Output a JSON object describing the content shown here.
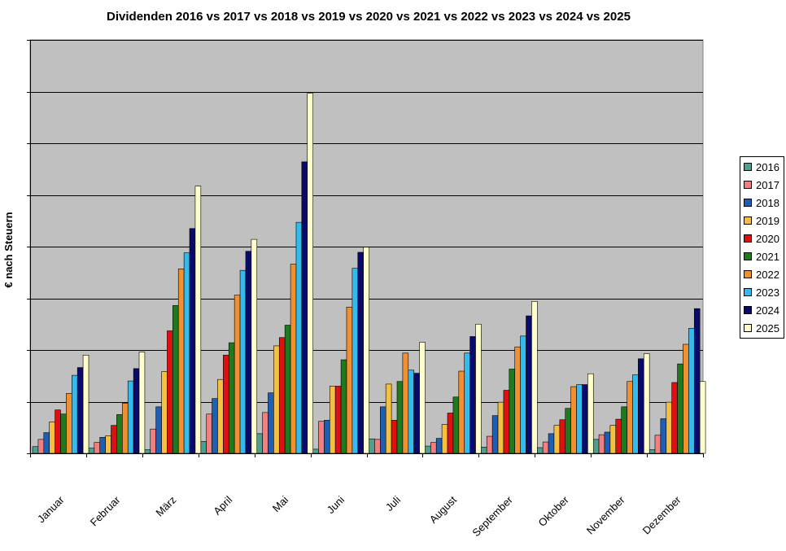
{
  "chart_data": {
    "type": "bar",
    "title": "Dividenden 2016 vs 2017 vs 2018 vs 2019 vs 2020 vs 2021 vs 2022 vs 2023 vs 2024 vs 2025",
    "xlabel": "",
    "ylabel": "€ nach Steuern",
    "ylim": [
      0,
      800
    ],
    "y_tick_step": 100,
    "y_tick_labels_visible": false,
    "grid": true,
    "legend": "right",
    "plot_background": "#c0c0c0",
    "categories": [
      "Januar",
      "Februar",
      "März",
      "April",
      "Mai",
      "Juni",
      "Juli",
      "August",
      "September",
      "Oktober",
      "November",
      "Dezember"
    ],
    "series": [
      {
        "name": "2016",
        "color": "#4f9f8f",
        "values": [
          13,
          10,
          7,
          23,
          38,
          8,
          28,
          14,
          12,
          11,
          27,
          7
        ]
      },
      {
        "name": "2017",
        "color": "#f08080",
        "values": [
          27,
          21,
          47,
          76,
          79,
          62,
          27,
          21,
          33,
          22,
          36,
          35
        ]
      },
      {
        "name": "2018",
        "color": "#1f5fb3",
        "values": [
          40,
          31,
          90,
          106,
          117,
          64,
          90,
          29,
          73,
          38,
          41,
          67
        ]
      },
      {
        "name": "2019",
        "color": "#f5c040",
        "values": [
          61,
          34,
          158,
          143,
          208,
          130,
          134,
          56,
          99,
          54,
          54,
          99
        ]
      },
      {
        "name": "2020",
        "color": "#dd1111",
        "values": [
          84,
          54,
          237,
          190,
          224,
          130,
          64,
          78,
          122,
          65,
          66,
          137
        ]
      },
      {
        "name": "2021",
        "color": "#1f7a1f",
        "values": [
          76,
          75,
          286,
          214,
          248,
          181,
          139,
          109,
          163,
          87,
          90,
          173
        ]
      },
      {
        "name": "2022",
        "color": "#f09030",
        "values": [
          116,
          97,
          357,
          306,
          366,
          283,
          194,
          159,
          206,
          129,
          139,
          211
        ]
      },
      {
        "name": "2023",
        "color": "#33bbee",
        "values": [
          151,
          140,
          388,
          354,
          447,
          358,
          161,
          194,
          227,
          133,
          152,
          242
        ]
      },
      {
        "name": "2024",
        "color": "#0a0a6a",
        "values": [
          166,
          164,
          435,
          391,
          564,
          389,
          155,
          226,
          266,
          133,
          183,
          280
        ]
      },
      {
        "name": "2025",
        "color": "#ffffcc",
        "values": [
          190,
          196,
          517,
          414,
          697,
          399,
          215,
          250,
          294,
          154,
          193,
          139
        ]
      }
    ]
  }
}
